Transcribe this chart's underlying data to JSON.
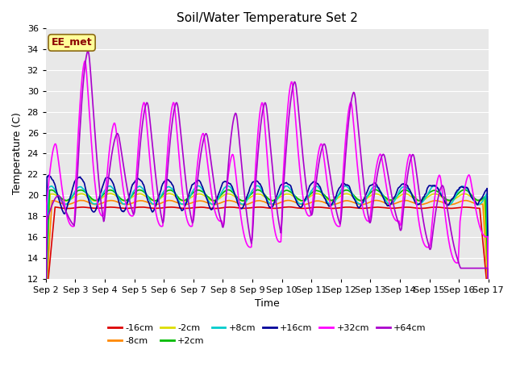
{
  "title": "Soil/Water Temperature Set 2",
  "xlabel": "Time",
  "ylabel": "Temperature (C)",
  "ylim": [
    12,
    36
  ],
  "yticks": [
    12,
    14,
    16,
    18,
    20,
    22,
    24,
    26,
    28,
    30,
    32,
    34,
    36
  ],
  "plot_bg": "#e8e8e8",
  "fig_bg": "#ffffff",
  "annotation_text": "EE_met",
  "annotation_color": "#8b0000",
  "annotation_bg": "#ffff99",
  "annotation_edge": "#8b6914",
  "series_order": [
    "-16cm",
    "-8cm",
    "-2cm",
    "+2cm",
    "+8cm",
    "+16cm",
    "+32cm",
    "+64cm"
  ],
  "series_colors": {
    "-16cm": "#dd0000",
    "-8cm": "#ff8800",
    "-2cm": "#dddd00",
    "+2cm": "#00bb00",
    "+8cm": "#00cccc",
    "+16cm": "#000099",
    "+32cm": "#ff00ff",
    "+64cm": "#aa00cc"
  },
  "n_days": 15,
  "xtick_labels": [
    "Sep 2",
    "Sep 3",
    "Sep 4",
    "Sep 5",
    "Sep 6",
    "Sep 7",
    "Sep 8",
    "Sep 9",
    "Sep 10",
    "Sep 11",
    "Sep 12",
    "Sep 13",
    "Sep 14",
    "Sep 15",
    "Sep 16",
    "Sep 17"
  ],
  "figsize": [
    6.4,
    4.8
  ],
  "dpi": 100,
  "grid_color": "#ffffff",
  "tick_labelsize": 8
}
